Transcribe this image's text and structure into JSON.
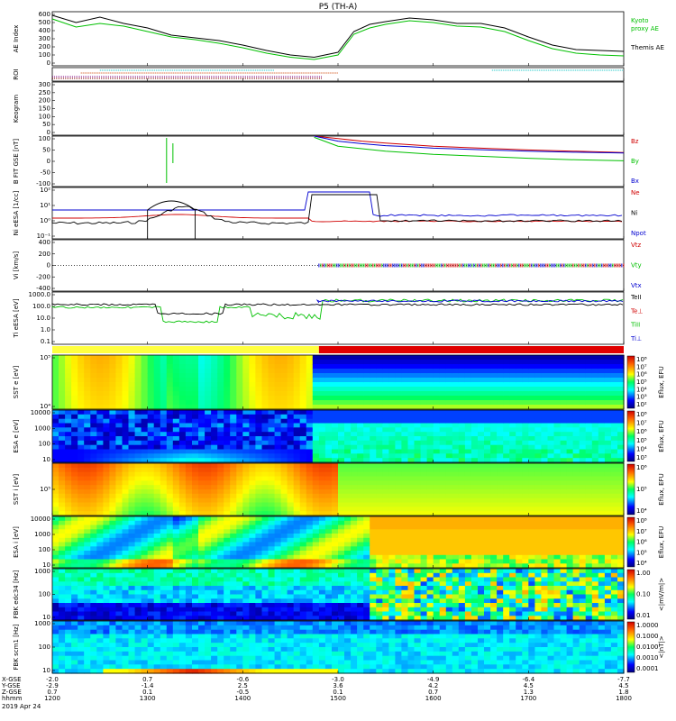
{
  "title": "P5 (TH-A)",
  "date": "2019 Apr 24",
  "time_axis": {
    "row_labels": [
      "X-GSE",
      "Y-GSE",
      "Z-GSE",
      "hhmm"
    ],
    "ticks": [
      {
        "x": "-2.0",
        "y": "-2.9",
        "z": "0.7",
        "t": "1200"
      },
      {
        "x": "0.7",
        "y": "-1.4",
        "z": "0.1",
        "t": "1300"
      },
      {
        "x": "-0.6",
        "y": "2.5",
        "z": "-0.5",
        "t": "1400"
      },
      {
        "x": "-3.0",
        "y": "3.6",
        "z": "0.1",
        "t": "1500"
      },
      {
        "x": "-4.9",
        "y": "4.2",
        "z": "0.7",
        "t": "1600"
      },
      {
        "x": "-6.4",
        "y": "4.5",
        "z": "1.3",
        "t": "1700"
      },
      {
        "x": "-7.7",
        "y": "4.5",
        "z": "1.8",
        "t": "1800"
      }
    ]
  },
  "chart_data": [
    {
      "panel": "ae",
      "type": "line",
      "ylabel": "AE Index",
      "yticks": [
        "600",
        "500",
        "400",
        "300",
        "200",
        "100",
        "0"
      ],
      "ylim": [
        0,
        600
      ],
      "x": [
        1200,
        1215,
        1230,
        1245,
        1300,
        1315,
        1330,
        1345,
        1400,
        1415,
        1430,
        1445,
        1500,
        1510,
        1520,
        1530,
        1545,
        1600,
        1615,
        1630,
        1645,
        1700,
        1715,
        1730,
        1745,
        1800
      ],
      "series": [
        {
          "name": "Kyoto proxy AE",
          "color": "#00c000",
          "values": [
            520,
            430,
            470,
            440,
            380,
            320,
            290,
            250,
            200,
            140,
            95,
            70,
            120,
            350,
            420,
            460,
            500,
            480,
            440,
            430,
            380,
            280,
            190,
            140,
            120,
            110
          ]
        },
        {
          "name": "Themis AE",
          "color": "#000000",
          "values": [
            560,
            480,
            540,
            470,
            420,
            340,
            310,
            280,
            230,
            170,
            120,
            95,
            150,
            380,
            460,
            490,
            530,
            510,
            470,
            470,
            420,
            320,
            230,
            180,
            170,
            160
          ]
        }
      ],
      "legend": [
        "Kyoto",
        "proxy AE",
        "Themis AE"
      ]
    },
    {
      "panel": "roi",
      "type": "bar",
      "ylabel": "ROI",
      "legend": []
    },
    {
      "panel": "keogram",
      "type": "line",
      "ylabel": "Keogram",
      "yticks": [
        "300",
        "250",
        "200",
        "150",
        "100",
        "50",
        "0"
      ],
      "ylim": [
        0,
        300
      ],
      "legend": []
    },
    {
      "panel": "bfit",
      "type": "line",
      "ylabel": "B FIT GSE [nT]",
      "yticks": [
        "100",
        "50",
        "0",
        "-50",
        "-100"
      ],
      "ylim": [
        -100,
        100
      ],
      "x": [
        1445,
        1500,
        1515,
        1530,
        1545,
        1600,
        1630,
        1700,
        1730,
        1800
      ],
      "series": [
        {
          "name": "Bz",
          "color": "#d00000",
          "values": [
            100,
            90,
            80,
            72,
            66,
            60,
            52,
            45,
            40,
            35
          ]
        },
        {
          "name": "By",
          "color": "#00c000",
          "values": [
            95,
            60,
            50,
            40,
            34,
            28,
            20,
            12,
            6,
            2
          ]
        },
        {
          "name": "Bx",
          "color": "#0000d0",
          "values": [
            100,
            80,
            70,
            62,
            58,
            52,
            46,
            40,
            36,
            33
          ]
        }
      ],
      "legend": [
        "Bz",
        "By",
        "Bx"
      ]
    },
    {
      "panel": "density",
      "type": "line",
      "ylabel": "Ni eESA [1/cc]",
      "yticks": [
        "10²",
        "10¹",
        "10⁰",
        "10⁻¹"
      ],
      "legend": [
        "Ne",
        "Ni",
        "Npot"
      ],
      "legend_colors": [
        "#d00000",
        "#000000",
        "#0000d0"
      ]
    },
    {
      "panel": "velocity",
      "type": "line",
      "ylabel": "Vi [km/s]",
      "yticks": [
        "400",
        "200",
        "0",
        "-200",
        "-400"
      ],
      "ylim": [
        -400,
        400
      ],
      "legend": [
        "Vtz",
        "Vty",
        "Vtx"
      ],
      "legend_colors": [
        "#d00000",
        "#00c000",
        "#0000d0"
      ]
    },
    {
      "panel": "temperature",
      "type": "line",
      "ylabel": "Ti eESA [eV]",
      "yticks": [
        "1000.0",
        "100.0",
        "10.0",
        "1.0",
        "0.1"
      ],
      "legend": [
        "TeII",
        "Te⊥",
        "TiII",
        "Ti⊥"
      ],
      "legend_colors": [
        "#000000",
        "#d00000",
        "#00c000",
        "#0000d0"
      ]
    },
    {
      "panel": "mode_bar",
      "type": "bar",
      "segments": [
        {
          "from": 1200,
          "to": 1448,
          "color": "#ffff40"
        },
        {
          "from": 1448,
          "to": 1800,
          "color": "#e00000"
        }
      ]
    },
    {
      "panel": "sst_e",
      "type": "heatmap",
      "ylabel": "SST e [eV]",
      "yticks": [
        "10⁵",
        "10⁴"
      ],
      "cbar_label": "Eflux, EFU",
      "cbar_ticks": [
        "10⁸",
        "10⁷",
        "10⁶",
        "10⁵",
        "10⁴",
        "10³",
        "10²"
      ]
    },
    {
      "panel": "esa_e",
      "type": "heatmap",
      "ylabel": "ESA e [eV]",
      "yticks": [
        "10000",
        "1000",
        "100",
        "10"
      ],
      "cbar_label": "Eflux, EFU",
      "cbar_ticks": [
        "10⁸",
        "10⁷",
        "10⁶",
        "10⁵",
        "10⁴",
        "10³"
      ]
    },
    {
      "panel": "sst_i",
      "type": "heatmap",
      "ylabel": "SST i [eV]",
      "yticks": [
        "10⁵"
      ],
      "cbar_label": "Eflux, EFU",
      "cbar_ticks": [
        "10⁶",
        "10⁵",
        "10⁴"
      ]
    },
    {
      "panel": "esa_i",
      "type": "heatmap",
      "ylabel": "ESA i [eV]",
      "yticks": [
        "10000",
        "1000",
        "100",
        "10"
      ],
      "cbar_label": "Eflux, EFU",
      "cbar_ticks": [
        "10⁸",
        "10⁷",
        "10⁶",
        "10⁵",
        "10⁴"
      ]
    },
    {
      "panel": "fbk_e",
      "type": "heatmap",
      "ylabel": "FBK edc34 [Hz]",
      "yticks": [
        "1000",
        "100",
        "10"
      ],
      "cbar_label": "<|mV/m|>",
      "cbar_ticks": [
        "1.00",
        "0.10",
        "0.01"
      ]
    },
    {
      "panel": "fbk_b",
      "type": "heatmap",
      "ylabel": "FBK scm1 [Hz]",
      "yticks": [
        "1000",
        "100",
        "10"
      ],
      "cbar_label": "<|nT|>",
      "cbar_ticks": [
        "1.0000",
        "0.1000",
        "0.0100",
        "0.0010",
        "0.0001"
      ]
    }
  ]
}
